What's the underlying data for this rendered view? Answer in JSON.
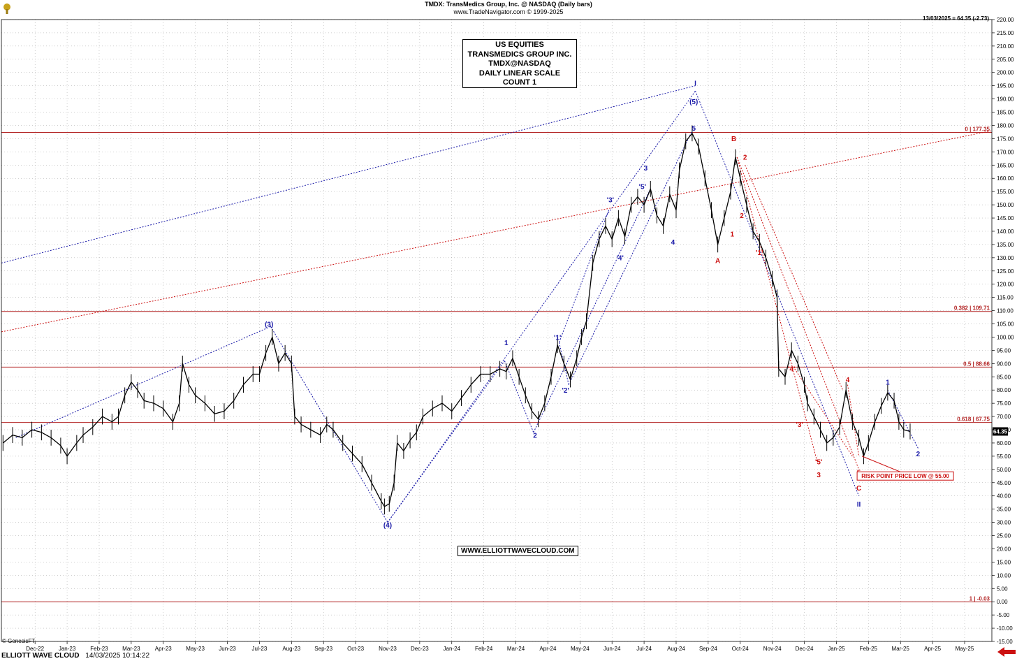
{
  "header": {
    "title": "TMDX:  TransMedics Group, Inc. @ NASDAQ  (Daily bars)",
    "subtitle": "www.TradeNavigator.com © 1999-2025",
    "last_quote": "13/03/2025 = 64.35 (-2.73)"
  },
  "info_box": {
    "lines": [
      "US EQUITIES",
      "TRANSMEDICS GROUP INC.",
      "TMDX@NASDAQ",
      "DAILY LINEAR SCALE",
      "COUNT 1"
    ]
  },
  "website": "WWW.ELLIOTTWAVECLOUD.COM",
  "copyright": "© GenesisFT",
  "footer": {
    "brand": "ELLIOTT WAVE CLOUD",
    "datetime": "14/03/2025 10:14:22"
  },
  "colors": {
    "price": "#000000",
    "grid": "#a0a0a0",
    "blue_wave": "#1a1aa8",
    "red_wave": "#cc1111",
    "fib_line": "#b22222"
  },
  "chart_data": {
    "type": "line",
    "title": "TMDX:  TransMedics Group, Inc. @ NASDAQ  (Daily bars)",
    "xlabel": "",
    "ylabel": "",
    "ylim": [
      -15,
      220
    ],
    "y_ticks": [
      -15,
      -10,
      -5,
      0,
      5,
      10,
      15,
      20,
      25,
      30,
      35,
      40,
      45,
      50,
      55,
      60,
      65,
      70,
      75,
      80,
      85,
      90,
      95,
      100,
      105,
      110,
      115,
      120,
      125,
      130,
      135,
      140,
      145,
      150,
      155,
      160,
      165,
      170,
      175,
      180,
      185,
      190,
      195,
      200,
      205,
      210,
      215,
      220
    ],
    "y_tick_labels": [
      "-15.00",
      "-10.00",
      "-5.00",
      "0.00",
      "5.00",
      "10.00",
      "15.00",
      "20.00",
      "25.00",
      "30.00",
      "35.00",
      "40.00",
      "45.00",
      "50.00",
      "55.00",
      "60.00",
      "65.00",
      "70.00",
      "75.00",
      "80.00",
      "85.00",
      "90.00",
      "95.00",
      "100.00",
      "105.00",
      "110.00",
      "115.00",
      "120.00",
      "125.00",
      "130.00",
      "135.00",
      "140.00",
      "145.00",
      "150.00",
      "155.00",
      "160.00",
      "165.00",
      "170.00",
      "175.00",
      "180.00",
      "185.00",
      "190.00",
      "195.00",
      "200.00",
      "205.00",
      "210.00",
      "215.00",
      "220.00"
    ],
    "x_labels": [
      {
        "label": "Dec-22",
        "t": 0.0
      },
      {
        "label": "Jan-23",
        "t": 1.0
      },
      {
        "label": "Feb-23",
        "t": 2.0
      },
      {
        "label": "Mar-23",
        "t": 3.0
      },
      {
        "label": "Apr-23",
        "t": 4.0
      },
      {
        "label": "May-23",
        "t": 5.0
      },
      {
        "label": "Jun-23",
        "t": 6.0
      },
      {
        "label": "Jul-23",
        "t": 7.0
      },
      {
        "label": "Aug-23",
        "t": 8.0
      },
      {
        "label": "Sep-23",
        "t": 9.0
      },
      {
        "label": "Oct-23",
        "t": 10.0
      },
      {
        "label": "Nov-23",
        "t": 11.0
      },
      {
        "label": "Dec-23",
        "t": 12.0
      },
      {
        "label": "Jan-24",
        "t": 13.0
      },
      {
        "label": "Feb-24",
        "t": 14.0
      },
      {
        "label": "Mar-24",
        "t": 15.0
      },
      {
        "label": "Apr-24",
        "t": 16.0
      },
      {
        "label": "May-24",
        "t": 17.0
      },
      {
        "label": "Jun-24",
        "t": 18.0
      },
      {
        "label": "Jul-24",
        "t": 19.0
      },
      {
        "label": "Aug-24",
        "t": 20.0
      },
      {
        "label": "Sep-24",
        "t": 21.0
      },
      {
        "label": "Oct-24",
        "t": 22.0
      },
      {
        "label": "Nov-24",
        "t": 23.0
      },
      {
        "label": "Dec-24",
        "t": 24.0
      },
      {
        "label": "Jan-25",
        "t": 25.0
      },
      {
        "label": "Feb-25",
        "t": 26.0
      },
      {
        "label": "Mar-25",
        "t": 27.0
      },
      {
        "label": "Apr-25",
        "t": 28.0
      },
      {
        "label": "May-25",
        "t": 29.0
      }
    ],
    "x_range": [
      -1.05,
      29.85
    ],
    "series": [
      {
        "points": [
          [
            -1.0,
            60
          ],
          [
            -0.7,
            63
          ],
          [
            -0.4,
            62
          ],
          [
            -0.1,
            65
          ],
          [
            0.2,
            64
          ],
          [
            0.5,
            62
          ],
          [
            0.8,
            59
          ],
          [
            1.0,
            55
          ],
          [
            1.3,
            60
          ],
          [
            1.5,
            63
          ],
          [
            1.8,
            66
          ],
          [
            2.1,
            70
          ],
          [
            2.4,
            68
          ],
          [
            2.6,
            70
          ],
          [
            2.8,
            78
          ],
          [
            3.0,
            83
          ],
          [
            3.2,
            80
          ],
          [
            3.4,
            76
          ],
          [
            3.7,
            75
          ],
          [
            4.0,
            73
          ],
          [
            4.3,
            68
          ],
          [
            4.5,
            75
          ],
          [
            4.6,
            90
          ],
          [
            4.8,
            82
          ],
          [
            5.0,
            78
          ],
          [
            5.3,
            75
          ],
          [
            5.6,
            71
          ],
          [
            5.9,
            72
          ],
          [
            6.2,
            76
          ],
          [
            6.5,
            82
          ],
          [
            6.8,
            86
          ],
          [
            7.0,
            86
          ],
          [
            7.2,
            94
          ],
          [
            7.4,
            100
          ],
          [
            7.6,
            90
          ],
          [
            7.8,
            94
          ],
          [
            8.0,
            90
          ],
          [
            8.1,
            70
          ],
          [
            8.3,
            67
          ],
          [
            8.6,
            65
          ],
          [
            8.9,
            63
          ],
          [
            9.1,
            67
          ],
          [
            9.3,
            65
          ],
          [
            9.6,
            60
          ],
          [
            9.9,
            56
          ],
          [
            10.2,
            52
          ],
          [
            10.5,
            45
          ],
          [
            10.8,
            38
          ],
          [
            10.9,
            36
          ],
          [
            11.05,
            37
          ],
          [
            11.2,
            45
          ],
          [
            11.3,
            60
          ],
          [
            11.5,
            57
          ],
          [
            11.7,
            61
          ],
          [
            11.9,
            64
          ],
          [
            12.1,
            70
          ],
          [
            12.4,
            73
          ],
          [
            12.7,
            75
          ],
          [
            13.0,
            72
          ],
          [
            13.3,
            77
          ],
          [
            13.6,
            82
          ],
          [
            13.9,
            86
          ],
          [
            14.2,
            86
          ],
          [
            14.5,
            88
          ],
          [
            14.7,
            87
          ],
          [
            14.9,
            92
          ],
          [
            15.1,
            85
          ],
          [
            15.3,
            78
          ],
          [
            15.5,
            72
          ],
          [
            15.7,
            69
          ],
          [
            15.9,
            75
          ],
          [
            16.1,
            85
          ],
          [
            16.3,
            97
          ],
          [
            16.5,
            90
          ],
          [
            16.7,
            84
          ],
          [
            16.9,
            92
          ],
          [
            17.05,
            100
          ],
          [
            17.2,
            106
          ],
          [
            17.4,
            128
          ],
          [
            17.6,
            137
          ],
          [
            17.8,
            142
          ],
          [
            18.0,
            137
          ],
          [
            18.2,
            145
          ],
          [
            18.4,
            138
          ],
          [
            18.6,
            150
          ],
          [
            18.8,
            153
          ],
          [
            19.0,
            150
          ],
          [
            19.2,
            156
          ],
          [
            19.4,
            146
          ],
          [
            19.6,
            142
          ],
          [
            19.8,
            154
          ],
          [
            20.0,
            148
          ],
          [
            20.1,
            163
          ],
          [
            20.3,
            174
          ],
          [
            20.5,
            177
          ],
          [
            20.7,
            172
          ],
          [
            20.9,
            160
          ],
          [
            21.1,
            148
          ],
          [
            21.3,
            135
          ],
          [
            21.5,
            145
          ],
          [
            21.7,
            155
          ],
          [
            21.85,
            168
          ],
          [
            22.0,
            160
          ],
          [
            22.2,
            150
          ],
          [
            22.4,
            140
          ],
          [
            22.6,
            136
          ],
          [
            22.8,
            130
          ],
          [
            23.0,
            122
          ],
          [
            23.15,
            115
          ],
          [
            23.2,
            88
          ],
          [
            23.4,
            85
          ],
          [
            23.6,
            95
          ],
          [
            23.8,
            90
          ],
          [
            24.0,
            82
          ],
          [
            24.1,
            75
          ],
          [
            24.3,
            70
          ],
          [
            24.5,
            65
          ],
          [
            24.7,
            60
          ],
          [
            24.9,
            62
          ],
          [
            25.1,
            66
          ],
          [
            25.3,
            80
          ],
          [
            25.5,
            68
          ],
          [
            25.7,
            62
          ],
          [
            25.85,
            55
          ],
          [
            26.0,
            60
          ],
          [
            26.2,
            68
          ],
          [
            26.4,
            74
          ],
          [
            26.6,
            79
          ],
          [
            26.8,
            76
          ],
          [
            26.95,
            68
          ],
          [
            27.1,
            65
          ],
          [
            27.3,
            64.35
          ]
        ]
      }
    ],
    "fibonacci_levels": [
      {
        "label": "0 | 177.35",
        "value": 177.35
      },
      {
        "label": "0.382 | 109.71",
        "value": 109.71
      },
      {
        "label": "0.5 | 88.66",
        "value": 88.66
      },
      {
        "label": "0.618 | 67.75",
        "value": 67.75
      },
      {
        "label": "1 | -0.03",
        "value": -0.03
      }
    ],
    "last_price_label": "64.35",
    "last_price": 64.35,
    "annotations": [
      {
        "text": "(3)",
        "t": 7.3,
        "v": 104,
        "color": "blue"
      },
      {
        "text": "(4)",
        "t": 11.0,
        "v": 28,
        "color": "blue"
      },
      {
        "text": "(5)",
        "t": 20.55,
        "v": 188,
        "color": "blue"
      },
      {
        "text": "I",
        "t": 20.6,
        "v": 195,
        "color": "blue"
      },
      {
        "text": "1",
        "t": 14.7,
        "v": 97,
        "color": "blue"
      },
      {
        "text": "2",
        "t": 15.6,
        "v": 62,
        "color": "blue"
      },
      {
        "text": "'1'",
        "t": 16.3,
        "v": 99,
        "color": "blue"
      },
      {
        "text": "'2'",
        "t": 16.55,
        "v": 79,
        "color": "blue"
      },
      {
        "text": "'3'",
        "t": 17.95,
        "v": 151,
        "color": "blue"
      },
      {
        "text": "'4'",
        "t": 18.25,
        "v": 129,
        "color": "blue"
      },
      {
        "text": "'5'",
        "t": 18.95,
        "v": 156,
        "color": "blue"
      },
      {
        "text": "3",
        "t": 19.05,
        "v": 163,
        "color": "blue"
      },
      {
        "text": "4",
        "t": 19.9,
        "v": 135,
        "color": "blue"
      },
      {
        "text": "5",
        "t": 20.55,
        "v": 178,
        "color": "blue"
      },
      {
        "text": "A",
        "t": 21.3,
        "v": 128,
        "color": "red"
      },
      {
        "text": "B",
        "t": 21.8,
        "v": 174,
        "color": "red"
      },
      {
        "text": "2",
        "t": 22.15,
        "v": 167,
        "color": "red"
      },
      {
        "text": "1",
        "t": 21.75,
        "v": 138,
        "color": "red"
      },
      {
        "text": "2",
        "t": 22.05,
        "v": 145,
        "color": "red"
      },
      {
        "text": "'1'",
        "t": 22.6,
        "v": 131,
        "color": "red"
      },
      {
        "text": "'4'",
        "t": 23.6,
        "v": 87,
        "color": "red"
      },
      {
        "text": "'3'",
        "t": 23.85,
        "v": 66,
        "color": "red"
      },
      {
        "text": "'5'",
        "t": 24.45,
        "v": 52,
        "color": "red"
      },
      {
        "text": "3",
        "t": 24.45,
        "v": 47,
        "color": "red"
      },
      {
        "text": "4",
        "t": 25.35,
        "v": 83,
        "color": "red"
      },
      {
        "text": "5",
        "t": 25.7,
        "v": 48,
        "color": "red"
      },
      {
        "text": "C",
        "t": 25.7,
        "v": 42,
        "color": "red"
      },
      {
        "text": "II",
        "t": 25.7,
        "v": 36,
        "color": "blue"
      },
      {
        "text": "1",
        "t": 26.6,
        "v": 82,
        "color": "blue"
      },
      {
        "text": "2",
        "t": 27.55,
        "v": 55,
        "color": "blue"
      }
    ],
    "risk_label": {
      "text": "RISK POINT PRICE LOW @ 55.00",
      "t": 27.15,
      "v": 47,
      "anchor_t": 25.8,
      "anchor_v": 55
    },
    "blue_channel_lines": [
      [
        [
          -1.05,
          128
        ],
        [
          20.6,
          195
        ]
      ],
      [
        [
          -0.6,
          62
        ],
        [
          7.35,
          104
        ]
      ],
      [
        [
          7.35,
          104
        ],
        [
          11.0,
          30
        ]
      ],
      [
        [
          11.0,
          30
        ],
        [
          20.6,
          193
        ]
      ],
      [
        [
          11.0,
          30
        ],
        [
          14.65,
          91
        ]
      ],
      [
        [
          14.65,
          91
        ],
        [
          15.55,
          64
        ]
      ],
      [
        [
          15.55,
          64
        ],
        [
          19.2,
          156
        ]
      ],
      [
        [
          17.9,
          148
        ],
        [
          16.35,
          98
        ]
      ],
      [
        [
          16.35,
          98
        ],
        [
          16.65,
          82
        ]
      ],
      [
        [
          16.65,
          82
        ],
        [
          20.5,
          178
        ]
      ],
      [
        [
          20.6,
          193
        ],
        [
          25.7,
          40
        ]
      ],
      [
        [
          26.6,
          80
        ],
        [
          27.55,
          58
        ]
      ]
    ],
    "red_channel_lines": [
      [
        [
          -1.05,
          102
        ],
        [
          29.85,
          178
        ]
      ],
      [
        [
          21.9,
          168
        ],
        [
          25.7,
          50
        ]
      ],
      [
        [
          21.9,
          168
        ],
        [
          24.4,
          53
        ]
      ],
      [
        [
          22.15,
          165
        ],
        [
          25.2,
          80
        ]
      ],
      [
        [
          23.7,
          88
        ],
        [
          25.5,
          55
        ]
      ],
      [
        [
          25.35,
          82
        ],
        [
          25.7,
          55
        ]
      ]
    ]
  }
}
